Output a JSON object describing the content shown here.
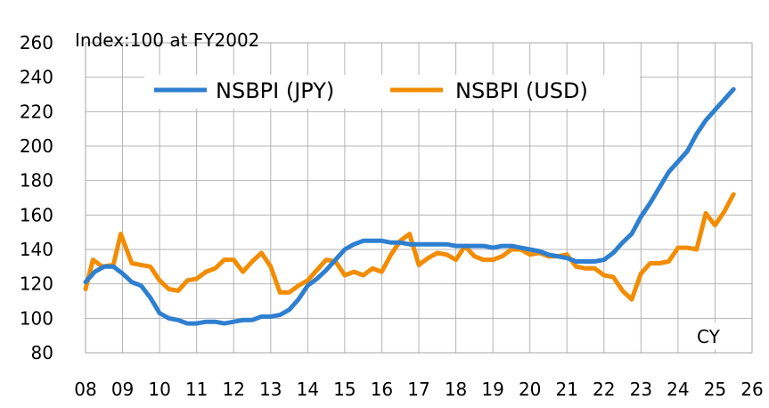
{
  "chart_data": {
    "type": "line",
    "title": "",
    "note": "Index:100 at FY2002",
    "xlabel": "CY",
    "ylabel": "",
    "ylim": [
      80,
      260
    ],
    "yticks": [
      80,
      100,
      120,
      140,
      160,
      180,
      200,
      220,
      240,
      260
    ],
    "xlim": [
      8,
      26
    ],
    "xticks": [
      8,
      9,
      10,
      11,
      12,
      13,
      14,
      15,
      16,
      17,
      18,
      19,
      20,
      21,
      22,
      23,
      24,
      25,
      26
    ],
    "xtick_labels": [
      "08",
      "09",
      "10",
      "11",
      "12",
      "13",
      "14",
      "15",
      "16",
      "17",
      "18",
      "19",
      "20",
      "21",
      "22",
      "23",
      "24",
      "25",
      "26"
    ],
    "grid": true,
    "legend_position": "top",
    "series": [
      {
        "name": "NSBPI (JPY)",
        "color": "#2e7fd0",
        "points": [
          [
            8.0,
            121
          ],
          [
            8.25,
            127
          ],
          [
            8.5,
            130
          ],
          [
            8.75,
            130
          ],
          [
            9.0,
            126
          ],
          [
            9.25,
            121
          ],
          [
            9.5,
            119
          ],
          [
            9.75,
            112
          ],
          [
            10.0,
            103
          ],
          [
            10.25,
            100
          ],
          [
            10.5,
            99
          ],
          [
            10.75,
            97
          ],
          [
            11.0,
            97
          ],
          [
            11.25,
            98
          ],
          [
            11.5,
            98
          ],
          [
            11.75,
            97
          ],
          [
            12.0,
            98
          ],
          [
            12.25,
            99
          ],
          [
            12.5,
            99
          ],
          [
            12.75,
            101
          ],
          [
            13.0,
            101
          ],
          [
            13.25,
            102
          ],
          [
            13.5,
            105
          ],
          [
            13.75,
            111
          ],
          [
            14.0,
            119
          ],
          [
            14.25,
            123
          ],
          [
            14.5,
            128
          ],
          [
            14.75,
            134
          ],
          [
            15.0,
            140
          ],
          [
            15.25,
            143
          ],
          [
            15.5,
            145
          ],
          [
            15.75,
            145
          ],
          [
            16.0,
            145
          ],
          [
            16.25,
            144
          ],
          [
            16.5,
            144
          ],
          [
            16.75,
            143
          ],
          [
            17.0,
            143
          ],
          [
            17.25,
            143
          ],
          [
            17.5,
            143
          ],
          [
            17.75,
            143
          ],
          [
            18.0,
            142
          ],
          [
            18.25,
            142
          ],
          [
            18.5,
            142
          ],
          [
            18.75,
            142
          ],
          [
            19.0,
            141
          ],
          [
            19.25,
            142
          ],
          [
            19.5,
            142
          ],
          [
            19.75,
            141
          ],
          [
            20.0,
            140
          ],
          [
            20.25,
            139
          ],
          [
            20.5,
            137
          ],
          [
            20.75,
            136
          ],
          [
            21.0,
            135
          ],
          [
            21.25,
            133
          ],
          [
            21.5,
            133
          ],
          [
            21.75,
            133
          ],
          [
            22.0,
            134
          ],
          [
            22.25,
            138
          ],
          [
            22.5,
            144
          ],
          [
            22.75,
            149
          ],
          [
            23.0,
            159
          ],
          [
            23.25,
            167
          ],
          [
            23.5,
            176
          ],
          [
            23.75,
            185
          ],
          [
            24.0,
            191
          ],
          [
            24.25,
            197
          ],
          [
            24.5,
            207
          ],
          [
            24.75,
            215
          ],
          [
            25.0,
            221
          ],
          [
            25.25,
            227
          ],
          [
            25.5,
            233
          ]
        ]
      },
      {
        "name": "NSBPI (USD)",
        "color": "#f28c00",
        "points": [
          [
            8.0,
            117
          ],
          [
            8.2,
            134
          ],
          [
            8.45,
            130
          ],
          [
            8.75,
            131
          ],
          [
            8.95,
            149
          ],
          [
            9.25,
            132
          ],
          [
            9.5,
            131
          ],
          [
            9.75,
            130
          ],
          [
            10.0,
            122
          ],
          [
            10.25,
            117
          ],
          [
            10.5,
            116
          ],
          [
            10.75,
            122
          ],
          [
            11.0,
            123
          ],
          [
            11.25,
            127
          ],
          [
            11.5,
            129
          ],
          [
            11.75,
            134
          ],
          [
            12.0,
            134
          ],
          [
            12.25,
            127
          ],
          [
            12.5,
            133
          ],
          [
            12.75,
            138
          ],
          [
            13.0,
            130
          ],
          [
            13.25,
            115
          ],
          [
            13.5,
            115
          ],
          [
            13.75,
            119
          ],
          [
            14.0,
            122
          ],
          [
            14.25,
            128
          ],
          [
            14.5,
            134
          ],
          [
            14.75,
            133
          ],
          [
            15.0,
            125
          ],
          [
            15.25,
            127
          ],
          [
            15.5,
            125
          ],
          [
            15.75,
            129
          ],
          [
            16.0,
            127
          ],
          [
            16.25,
            137
          ],
          [
            16.5,
            145
          ],
          [
            16.75,
            149
          ],
          [
            17.0,
            131
          ],
          [
            17.25,
            135
          ],
          [
            17.5,
            138
          ],
          [
            17.75,
            137
          ],
          [
            18.0,
            134
          ],
          [
            18.25,
            142
          ],
          [
            18.5,
            136
          ],
          [
            18.75,
            134
          ],
          [
            19.0,
            134
          ],
          [
            19.25,
            136
          ],
          [
            19.5,
            140
          ],
          [
            19.75,
            140
          ],
          [
            20.0,
            137
          ],
          [
            20.25,
            138
          ],
          [
            20.5,
            136
          ],
          [
            20.75,
            136
          ],
          [
            21.0,
            137
          ],
          [
            21.25,
            130
          ],
          [
            21.5,
            129
          ],
          [
            21.75,
            129
          ],
          [
            22.0,
            125
          ],
          [
            22.25,
            124
          ],
          [
            22.5,
            116
          ],
          [
            22.75,
            111
          ],
          [
            23.0,
            126
          ],
          [
            23.25,
            132
          ],
          [
            23.5,
            132
          ],
          [
            23.75,
            133
          ],
          [
            24.0,
            141
          ],
          [
            24.25,
            141
          ],
          [
            24.5,
            140
          ],
          [
            24.75,
            161
          ],
          [
            25.0,
            154
          ],
          [
            25.25,
            162
          ],
          [
            25.5,
            172
          ]
        ]
      }
    ]
  }
}
